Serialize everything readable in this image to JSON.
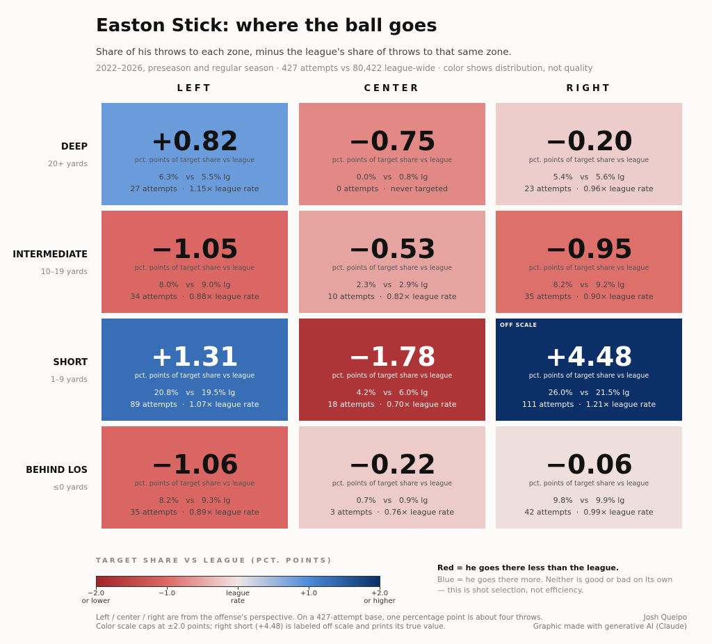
{
  "chart_data": {
    "type": "heatmap",
    "title": "Easton Stick: where the ball goes",
    "subtitle": "Share of his throws to each zone, minus the league's share of throws to that same zone.",
    "note": "2022–2026, preseason and regular season · 427 attempts vs 80,422 league-wide · color shows distribution, not quality",
    "columns": [
      "LEFT",
      "CENTER",
      "RIGHT"
    ],
    "rows": [
      {
        "name": "DEEP",
        "sub": "20+ yards"
      },
      {
        "name": "INTERMEDIATE",
        "sub": "10–19 yards"
      },
      {
        "name": "SHORT",
        "sub": "1–9 yards"
      },
      {
        "name": "BEHIND LOS",
        "sub": "≤0 yards"
      }
    ],
    "cell_unit": "pct. points of target share vs league",
    "cells": [
      [
        {
          "value": 0.82,
          "label": "+0.82",
          "share": "6.3%   vs   5.5% lg",
          "attempts": "27 attempts  ·  1.15× league rate"
        },
        {
          "value": -0.75,
          "label": "−0.75",
          "share": "0.0%   vs   0.8% lg",
          "attempts": "0 attempts  ·  never targeted"
        },
        {
          "value": -0.2,
          "label": "−0.20",
          "share": "5.4%   vs   5.6% lg",
          "attempts": "23 attempts  ·  0.96× league rate"
        }
      ],
      [
        {
          "value": -1.05,
          "label": "−1.05",
          "share": "8.0%   vs   9.0% lg",
          "attempts": "34 attempts  ·  0.88× league rate"
        },
        {
          "value": -0.53,
          "label": "−0.53",
          "share": "2.3%   vs   2.9% lg",
          "attempts": "10 attempts  ·  0.82× league rate"
        },
        {
          "value": -0.95,
          "label": "−0.95",
          "share": "8.2%   vs   9.2% lg",
          "attempts": "35 attempts  ·  0.90× league rate"
        }
      ],
      [
        {
          "value": 1.31,
          "label": "+1.31",
          "share": "20.8%   vs   19.5% lg",
          "attempts": "89 attempts  ·  1.07× league rate"
        },
        {
          "value": -1.78,
          "label": "−1.78",
          "share": "4.2%   vs   6.0% lg",
          "attempts": "18 attempts  ·  0.70× league rate"
        },
        {
          "value": 4.48,
          "label": "+4.48",
          "share": "26.0%   vs   21.5% lg",
          "attempts": "111 attempts  ·  1.21× league rate",
          "flag": "OFF SCALE"
        }
      ],
      [
        {
          "value": -1.06,
          "label": "−1.06",
          "share": "8.2%   vs   9.3% lg",
          "attempts": "35 attempts  ·  0.89× league rate"
        },
        {
          "value": -0.22,
          "label": "−0.22",
          "share": "0.7%   vs   0.9% lg",
          "attempts": "3 attempts  ·  0.76× league rate"
        },
        {
          "value": -0.06,
          "label": "−0.06",
          "share": "9.8%   vs   9.9% lg",
          "attempts": "42 attempts  ·  0.99× league rate"
        }
      ]
    ],
    "color_scale": {
      "title": "TARGET SHARE VS LEAGUE (PCT. POINTS)",
      "min": -2.0,
      "max": 2.0,
      "colors": {
        "neg": "#a1262a",
        "mid": "#f0e6e4",
        "pos": "#0b2f66"
      },
      "ticks": [
        {
          "value": -2.0,
          "lines": [
            "−2.0",
            "or lower"
          ]
        },
        {
          "value": -1.0,
          "lines": [
            "−1.0"
          ]
        },
        {
          "value": 0,
          "lines": [
            "league",
            "rate"
          ]
        },
        {
          "value": 1.0,
          "lines": [
            "+1.0"
          ]
        },
        {
          "value": 2.0,
          "lines": [
            "+2.0",
            "or higher"
          ]
        }
      ]
    }
  },
  "key": {
    "strong": "Red = he goes there less than the league.",
    "soft": "Blue = he goes there more. Neither is good or bad on its own — this is shot selection, not efficiency."
  },
  "footnote": [
    "Left / center / right are from the offense's perspective. On a 427-attempt base, one percentage point is about four throws.",
    "Color scale caps at ±2.0 points; right short (+4.48) is labeled off scale and prints its true value."
  ],
  "credit": [
    "Josh Queipo",
    "Graphic made with generative AI (Claude)"
  ]
}
